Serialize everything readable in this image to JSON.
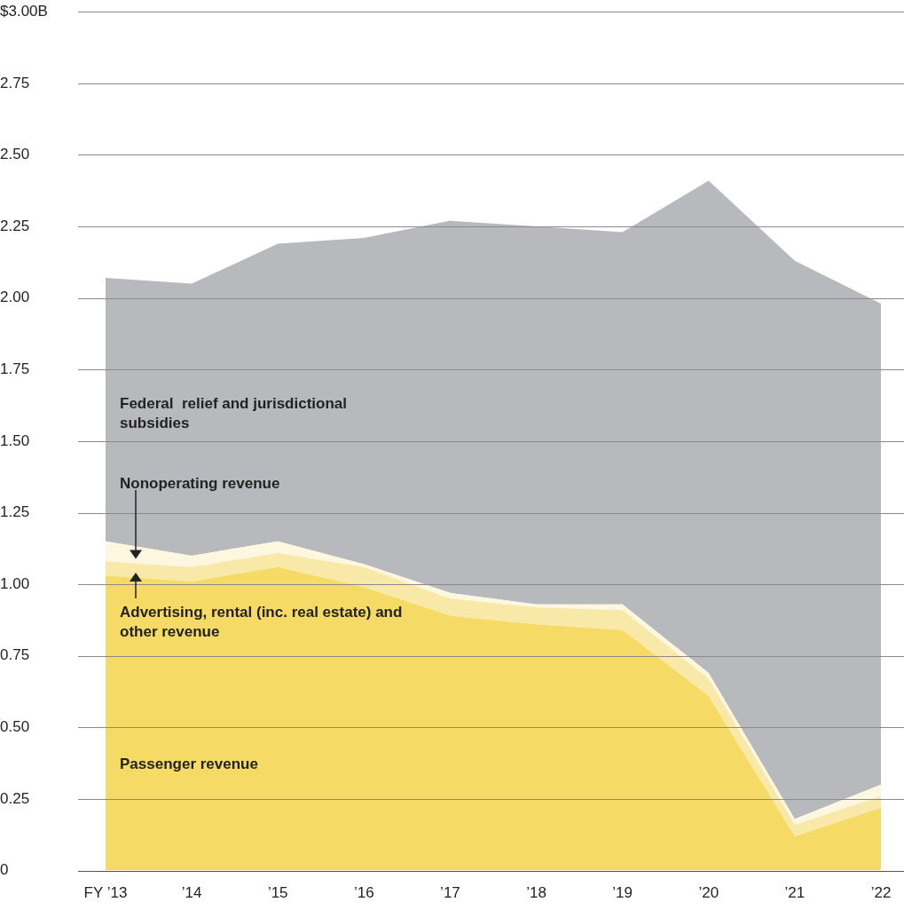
{
  "chart_data": {
    "type": "area",
    "stacked": true,
    "categories": [
      "FY ’13",
      "’14",
      "’15",
      "’16",
      "’17",
      "’18",
      "’19",
      "’20",
      "’21",
      "’22"
    ],
    "series": [
      {
        "name": "Passenger revenue",
        "color": "#f6da66",
        "values": [
          1.03,
          1.01,
          1.06,
          0.99,
          0.89,
          0.86,
          0.84,
          0.61,
          0.12,
          0.22
        ]
      },
      {
        "name": "Advertising, rental (inc. real estate) and other revenue",
        "color": "#f9e9a9",
        "values": [
          0.05,
          0.05,
          0.05,
          0.07,
          0.06,
          0.06,
          0.07,
          0.06,
          0.04,
          0.04
        ]
      },
      {
        "name": "Nonoperating revenue",
        "color": "#fdf7e0",
        "values": [
          0.07,
          0.04,
          0.04,
          0.01,
          0.02,
          0.01,
          0.02,
          0.02,
          0.02,
          0.04
        ]
      },
      {
        "name": "Federal  relief and jurisdictional subsidies",
        "color": "#b8b9bd",
        "values": [
          0.92,
          0.95,
          1.04,
          1.14,
          1.3,
          1.32,
          1.3,
          1.72,
          1.95,
          1.68
        ]
      }
    ],
    "ylim": [
      0,
      3
    ],
    "yticks": [
      {
        "value": 0,
        "label": "0"
      },
      0.25,
      {
        "value": 0.5,
        "label": "0.50"
      },
      0.75,
      {
        "value": 1,
        "label": "1.00"
      },
      1.25,
      {
        "value": 1.5,
        "label": "1.50"
      },
      1.75,
      {
        "value": 2,
        "label": "2.00"
      },
      2.25,
      {
        "value": 2.5,
        "label": "2.50"
      },
      2.75,
      {
        "value": 3,
        "label": "$3.00B"
      }
    ],
    "grid": "y",
    "legend": false
  }
}
